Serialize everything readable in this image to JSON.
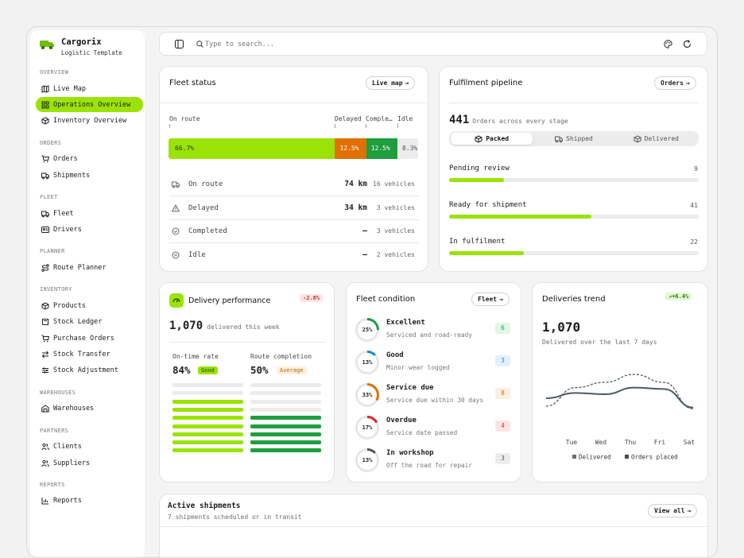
{
  "brand": {
    "name": "Cargorix",
    "subtitle": "Logistic Template"
  },
  "sidebar": {
    "sections": [
      {
        "title": "OVERVIEW",
        "items": [
          {
            "label": "Live Map",
            "icon": "map-icon"
          },
          {
            "label": "Operations Overview",
            "icon": "grid-icon",
            "active": true
          },
          {
            "label": "Inventory Overview",
            "icon": "box-icon"
          }
        ]
      },
      {
        "title": "ORDERS",
        "items": [
          {
            "label": "Orders",
            "icon": "cart-icon"
          },
          {
            "label": "Shipments",
            "icon": "truck-icon"
          }
        ]
      },
      {
        "title": "FLEET",
        "items": [
          {
            "label": "Fleet",
            "icon": "truck-icon"
          },
          {
            "label": "Drivers",
            "icon": "id-card-icon"
          }
        ]
      },
      {
        "title": "PLANNER",
        "items": [
          {
            "label": "Route Planner",
            "icon": "route-icon"
          }
        ]
      },
      {
        "title": "INVENTORY",
        "items": [
          {
            "label": "Products",
            "icon": "box-icon"
          },
          {
            "label": "Stock Ledger",
            "icon": "book-icon"
          },
          {
            "label": "Purchase Orders",
            "icon": "cart-icon"
          },
          {
            "label": "Stock Transfer",
            "icon": "arrows-icon"
          },
          {
            "label": "Stock Adjustment",
            "icon": "sliders-icon"
          }
        ]
      },
      {
        "title": "WAREHOUSES",
        "items": [
          {
            "label": "Warehouses",
            "icon": "warehouse-icon"
          }
        ]
      },
      {
        "title": "PARTNERS",
        "items": [
          {
            "label": "Clients",
            "icon": "users-icon"
          },
          {
            "label": "Suppliers",
            "icon": "users-icon"
          }
        ]
      },
      {
        "title": "REPORTS",
        "items": [
          {
            "label": "Reports",
            "icon": "chart-icon"
          }
        ]
      }
    ]
  },
  "search": {
    "placeholder": "Type to search..."
  },
  "fleet_status": {
    "title": "Fleet status",
    "button": "Live map",
    "segment_labels": [
      "On route",
      "Delayed",
      "Comple…",
      "Idle"
    ],
    "segments": [
      {
        "label": "66.7%",
        "value": 66.7,
        "color": "#9be307"
      },
      {
        "label": "12.5%",
        "value": 12.5,
        "color": "#e07000"
      },
      {
        "label": "12.5%",
        "value": 12.5,
        "color": "#1e9e3e"
      },
      {
        "label": "8.3%",
        "value": 8.3,
        "color": "#ececec"
      }
    ],
    "rows": [
      {
        "label": "On route",
        "dist": "74 km",
        "vehicles": "16 vehicles",
        "icon": "truck-icon"
      },
      {
        "label": "Delayed",
        "dist": "34 km",
        "vehicles": "3 vehicles",
        "icon": "warning-icon"
      },
      {
        "label": "Completed",
        "dist": "–",
        "vehicles": "3 vehicles",
        "icon": "check-circle-icon"
      },
      {
        "label": "Idle",
        "dist": "–",
        "vehicles": "2 vehicles",
        "icon": "pause-circle-icon"
      }
    ]
  },
  "pipeline": {
    "title": "Fulfilment pipeline",
    "button": "Orders",
    "total": "441",
    "total_caption": "Orders across every stage",
    "tabs": [
      {
        "label": "Packed",
        "active": true
      },
      {
        "label": "Shipped"
      },
      {
        "label": "Delivered"
      }
    ],
    "stages": [
      {
        "label": "Pending review",
        "count": "9",
        "progress": 0.22
      },
      {
        "label": "Ready for shipment",
        "count": "41",
        "progress": 0.57
      },
      {
        "label": "In fulfilment",
        "count": "22",
        "progress": 0.3
      }
    ]
  },
  "delivery": {
    "title": "Delivery performance",
    "delta": "-2.8%",
    "value": "1,070",
    "caption": "delivered this week",
    "metrics": [
      {
        "label": "On-time rate",
        "value": "84%",
        "badge": "Good",
        "filled": 7,
        "total": 9,
        "color": "#9be307"
      },
      {
        "label": "Route completion",
        "value": "50%",
        "badge": "Average",
        "filled": 5,
        "total": 9,
        "color": "#1e9e3e"
      }
    ]
  },
  "condition": {
    "title": "Fleet condition",
    "button": "Fleet",
    "items": [
      {
        "pct": "25%",
        "value": 25,
        "title": "Excellent",
        "sub": "Serviced and road-ready",
        "count": "6",
        "color": "#1e9e3e",
        "bg": "#e2f5e6"
      },
      {
        "pct": "13%",
        "value": 13,
        "title": "Good",
        "sub": "Minor wear logged",
        "count": "3",
        "color": "#1b8ad6",
        "bg": "#e1f0fb"
      },
      {
        "pct": "33%",
        "value": 33,
        "title": "Service due",
        "sub": "Service due within 30 days",
        "count": "8",
        "color": "#e07000",
        "bg": "#fdefe0"
      },
      {
        "pct": "17%",
        "value": 17,
        "title": "Overdue",
        "sub": "Service date passed",
        "count": "4",
        "color": "#dc2626",
        "bg": "#fde4e4"
      },
      {
        "pct": "13%",
        "value": 13,
        "title": "In workshop",
        "sub": "Off the road for repair",
        "count": "3",
        "color": "#555555",
        "bg": "#ececec"
      }
    ]
  },
  "trend": {
    "title": "Deliveries trend",
    "delta": "+6.4%",
    "value": "1,070",
    "caption": "Delivered over the last 7 days"
  },
  "chart_data": {
    "type": "line",
    "categories": [
      "Tue",
      "Wed",
      "Thu",
      "Fri",
      "Sat",
      "Sun"
    ],
    "series": [
      {
        "name": "Delivered",
        "values": [
          148,
          152,
          151,
          156,
          155,
          141
        ],
        "style": "solid",
        "color": "#4a5a62"
      },
      {
        "name": "Orders placed",
        "values": [
          142,
          156,
          160,
          166,
          160,
          140
        ],
        "style": "dashed",
        "color": "#4a5a62"
      }
    ],
    "ylim": [
      130,
      175
    ],
    "legend": "bottom"
  },
  "shipments": {
    "title": "Active shipments",
    "caption": "7 shipments scheduled or in transit",
    "button": "View all"
  },
  "colors": {
    "accent": "#9be307",
    "orange": "#e07000",
    "green": "#1e9e3e"
  }
}
